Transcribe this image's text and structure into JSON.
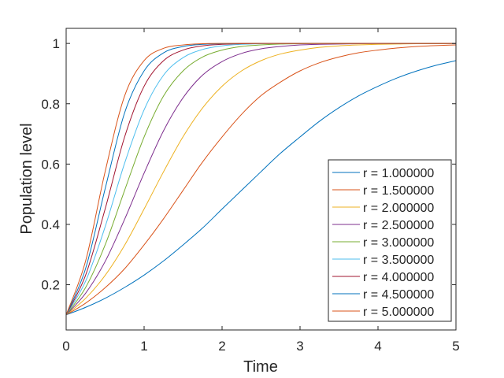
{
  "chart_data": {
    "type": "line",
    "title": "",
    "xlabel": "Time",
    "ylabel": "Population level",
    "xlim": [
      0,
      5
    ],
    "ylim": [
      0.05,
      1.05
    ],
    "x_ticks": [
      0,
      1,
      2,
      3,
      4,
      5
    ],
    "x_tick_labels": [
      "0",
      "1",
      "2",
      "3",
      "4",
      "5"
    ],
    "y_ticks": [
      0.2,
      0.4,
      0.6,
      0.8,
      1.0
    ],
    "y_tick_labels": [
      "0.2",
      "0.4",
      "0.6",
      "0.8",
      "1"
    ],
    "grid": false,
    "legend_position": "lower-right",
    "x": [
      0,
      0.25,
      0.5,
      0.75,
      1,
      1.25,
      1.5,
      1.75,
      2,
      2.25,
      2.5,
      2.75,
      3,
      3.25,
      3.5,
      3.75,
      4,
      4.25,
      4.5,
      4.75,
      5
    ],
    "series": [
      {
        "name": "r = 1.000000",
        "color": "#0072BD",
        "values": [
          0.1,
          0.125,
          0.155,
          0.191,
          0.232,
          0.279,
          0.332,
          0.388,
          0.451,
          0.513,
          0.575,
          0.636,
          0.69,
          0.742,
          0.787,
          0.826,
          0.858,
          0.886,
          0.909,
          0.928,
          0.943
        ]
      },
      {
        "name": "r = 1.500000",
        "color": "#D95319",
        "values": [
          0.1,
          0.139,
          0.19,
          0.253,
          0.332,
          0.419,
          0.513,
          0.607,
          0.69,
          0.765,
          0.827,
          0.872,
          0.909,
          0.936,
          0.955,
          0.969,
          0.978,
          0.985,
          0.99,
          0.993,
          0.995
        ]
      },
      {
        "name": "r = 2.000000",
        "color": "#EDB120",
        "values": [
          0.1,
          0.155,
          0.231,
          0.331,
          0.451,
          0.575,
          0.691,
          0.786,
          0.858,
          0.909,
          0.943,
          0.965,
          0.978,
          0.987,
          0.992,
          0.995,
          0.997,
          0.998,
          0.999,
          0.999,
          1.0
        ]
      },
      {
        "name": "r = 2.500000",
        "color": "#7E2F8E",
        "values": [
          0.1,
          0.172,
          0.277,
          0.417,
          0.57,
          0.711,
          0.82,
          0.895,
          0.94,
          0.967,
          0.982,
          0.99,
          0.995,
          0.997,
          0.998,
          0.999,
          1.0,
          1.0,
          1.0,
          1.0,
          1.0
        ]
      },
      {
        "name": "r = 3.000000",
        "color": "#77AC30",
        "values": [
          0.1,
          0.191,
          0.332,
          0.513,
          0.69,
          0.826,
          0.909,
          0.955,
          0.978,
          0.99,
          0.995,
          0.998,
          0.999,
          1.0,
          1.0,
          1.0,
          1.0,
          1.0,
          1.0,
          1.0,
          1.0
        ]
      },
      {
        "name": "r = 3.500000",
        "color": "#4DBEEE",
        "values": [
          0.1,
          0.212,
          0.392,
          0.603,
          0.78,
          0.895,
          0.953,
          0.98,
          0.992,
          0.997,
          0.999,
          1.0,
          1.0,
          1.0,
          1.0,
          1.0,
          1.0,
          1.0,
          1.0,
          1.0,
          1.0
        ]
      },
      {
        "name": "r = 4.000000",
        "color": "#A2142F",
        "values": [
          0.1,
          0.232,
          0.451,
          0.69,
          0.858,
          0.943,
          0.978,
          0.992,
          0.997,
          0.999,
          1.0,
          1.0,
          1.0,
          1.0,
          1.0,
          1.0,
          1.0,
          1.0,
          1.0,
          1.0,
          1.0
        ]
      },
      {
        "name": "r = 4.500000",
        "color": "#0072BD",
        "values": [
          0.1,
          0.254,
          0.518,
          0.77,
          0.909,
          0.969,
          0.99,
          0.997,
          0.999,
          1.0,
          1.0,
          1.0,
          1.0,
          1.0,
          1.0,
          1.0,
          1.0,
          1.0,
          1.0,
          1.0,
          1.0
        ]
      },
      {
        "name": "r = 5.000000",
        "color": "#D95319",
        "values": [
          0.1,
          0.279,
          0.575,
          0.826,
          0.943,
          0.984,
          0.995,
          0.999,
          1.0,
          1.0,
          1.0,
          1.0,
          1.0,
          1.0,
          1.0,
          1.0,
          1.0,
          1.0,
          1.0,
          1.0,
          1.0
        ]
      }
    ]
  }
}
